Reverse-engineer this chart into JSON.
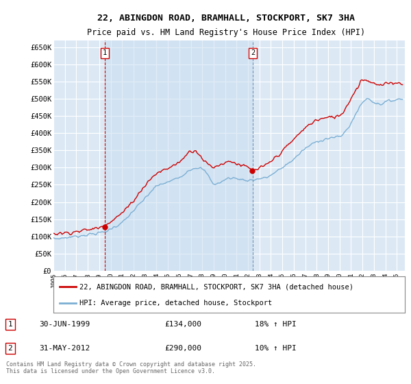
{
  "title": "22, ABINGDON ROAD, BRAMHALL, STOCKPORT, SK7 3HA",
  "subtitle": "Price paid vs. HM Land Registry's House Price Index (HPI)",
  "ylim": [
    0,
    670000
  ],
  "yticks": [
    0,
    50000,
    100000,
    150000,
    200000,
    250000,
    300000,
    350000,
    400000,
    450000,
    500000,
    550000,
    600000,
    650000
  ],
  "ytick_labels": [
    "£0",
    "£50K",
    "£100K",
    "£150K",
    "£200K",
    "£250K",
    "£300K",
    "£350K",
    "£400K",
    "£450K",
    "£500K",
    "£550K",
    "£600K",
    "£650K"
  ],
  "bg_color": "#dce9f5",
  "grid_color": "#ffffff",
  "sale_color": "#cc0000",
  "hpi_color": "#7bafd4",
  "shade_color": "#c8ddf0",
  "marker1_year": 1999.5,
  "marker2_year": 2012.42,
  "marker1_linestyle": "red_dashed",
  "marker2_linestyle": "blue_dashed",
  "legend_sale": "22, ABINGDON ROAD, BRAMHALL, STOCKPORT, SK7 3HA (detached house)",
  "legend_hpi": "HPI: Average price, detached house, Stockport",
  "annotation1_label": "1",
  "annotation1_date": "30-JUN-1999",
  "annotation1_price": "£134,000",
  "annotation1_pct": "18% ↑ HPI",
  "annotation2_label": "2",
  "annotation2_date": "31-MAY-2012",
  "annotation2_price": "£290,000",
  "annotation2_pct": "10% ↑ HPI",
  "footer": "Contains HM Land Registry data © Crown copyright and database right 2025.\nThis data is licensed under the Open Government Licence v3.0.",
  "title_fontsize": 9.5,
  "subtitle_fontsize": 8.5
}
